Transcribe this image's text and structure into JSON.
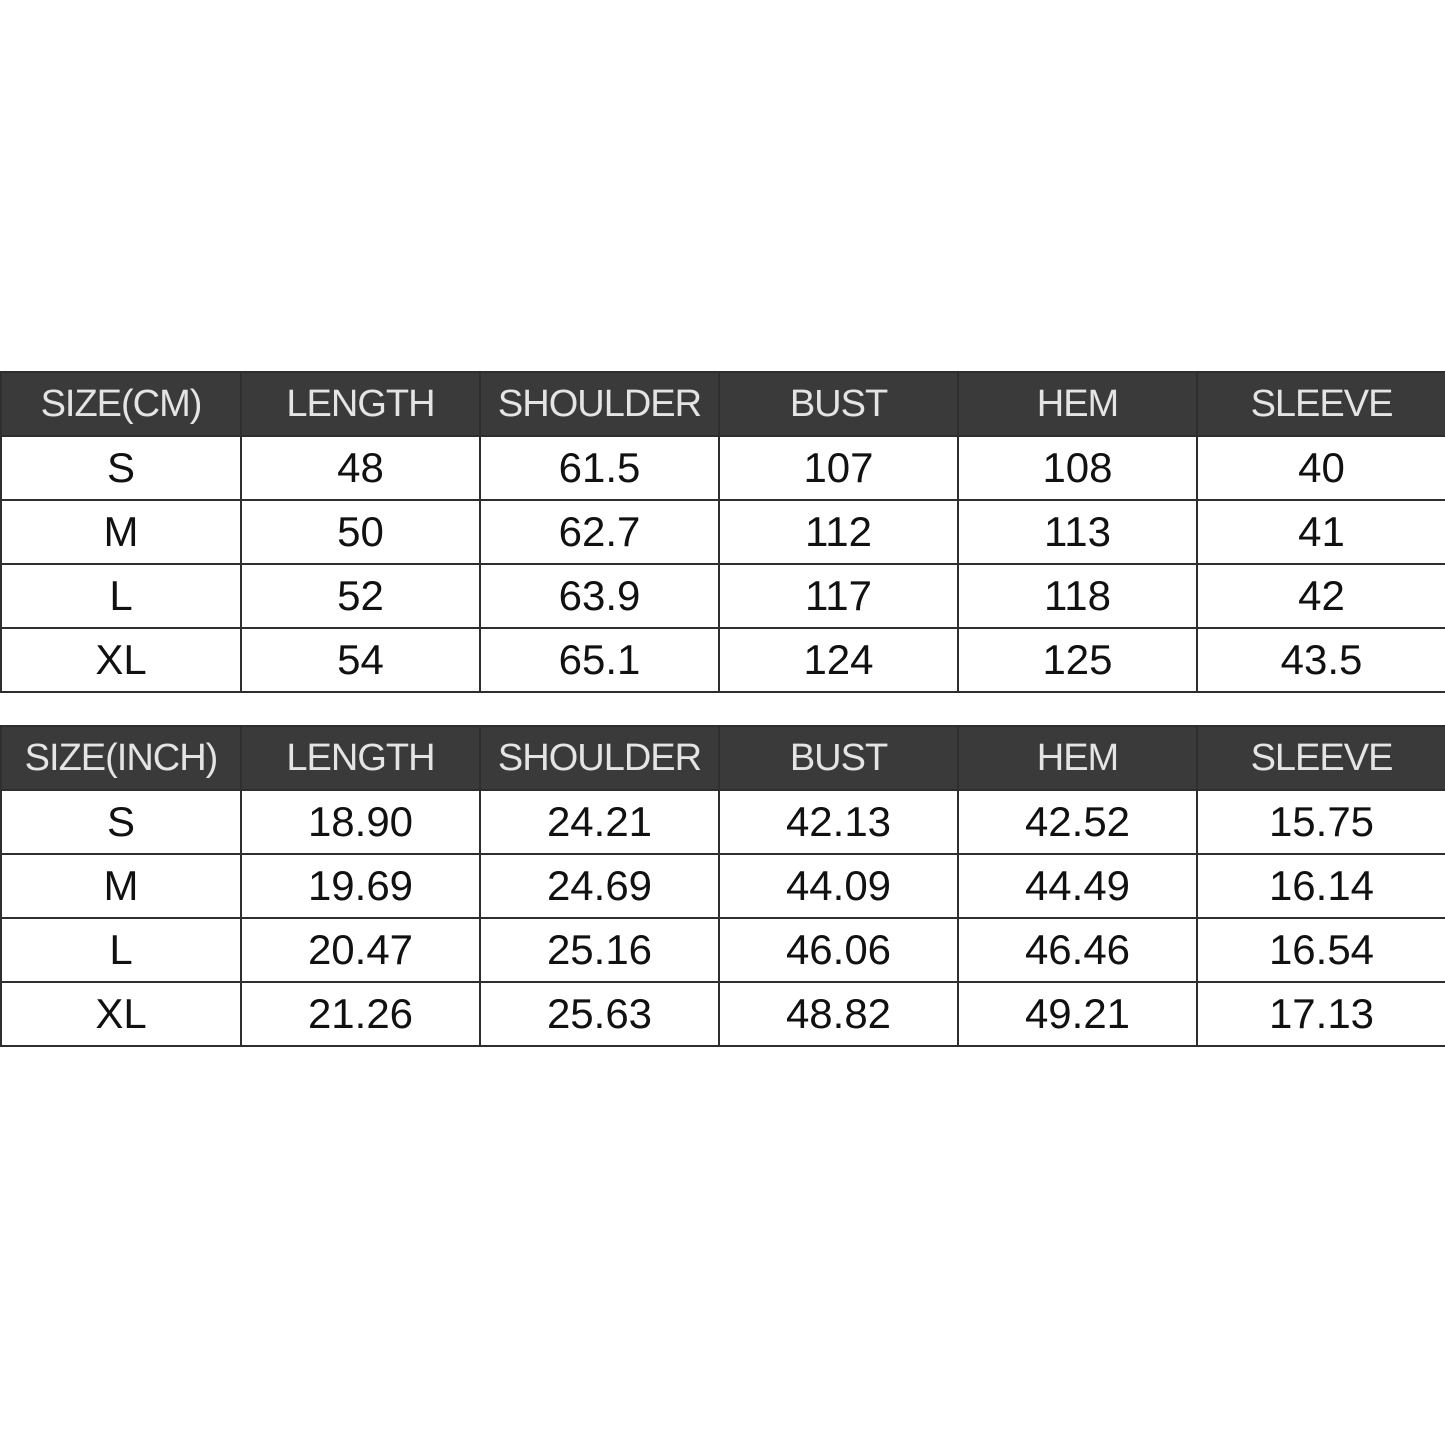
{
  "tables": [
    {
      "headers": [
        "SIZE(CM)",
        "LENGTH",
        "SHOULDER",
        "BUST",
        "HEM",
        "SLEEVE"
      ],
      "rows": [
        [
          "S",
          "48",
          "61.5",
          "107",
          "108",
          "40"
        ],
        [
          "M",
          "50",
          "62.7",
          "112",
          "113",
          "41"
        ],
        [
          "L",
          "52",
          "63.9",
          "117",
          "118",
          "42"
        ],
        [
          "XL",
          "54",
          "65.1",
          "124",
          "125",
          "43.5"
        ]
      ]
    },
    {
      "headers": [
        "SIZE(INCH)",
        "LENGTH",
        "SHOULDER",
        "BUST",
        "HEM",
        "SLEEVE"
      ],
      "rows": [
        [
          "S",
          "18.90",
          "24.21",
          "42.13",
          "42.52",
          "15.75"
        ],
        [
          "M",
          "19.69",
          "24.69",
          "44.09",
          "44.49",
          "16.14"
        ],
        [
          "L",
          "20.47",
          "25.16",
          "46.06",
          "46.46",
          "16.54"
        ],
        [
          "XL",
          "21.26",
          "25.63",
          "48.82",
          "49.21",
          "17.13"
        ]
      ]
    }
  ],
  "colors": {
    "header_bg": "#3a3a3a",
    "header_text": "#e4e4e4",
    "border": "#2e2e2e"
  }
}
